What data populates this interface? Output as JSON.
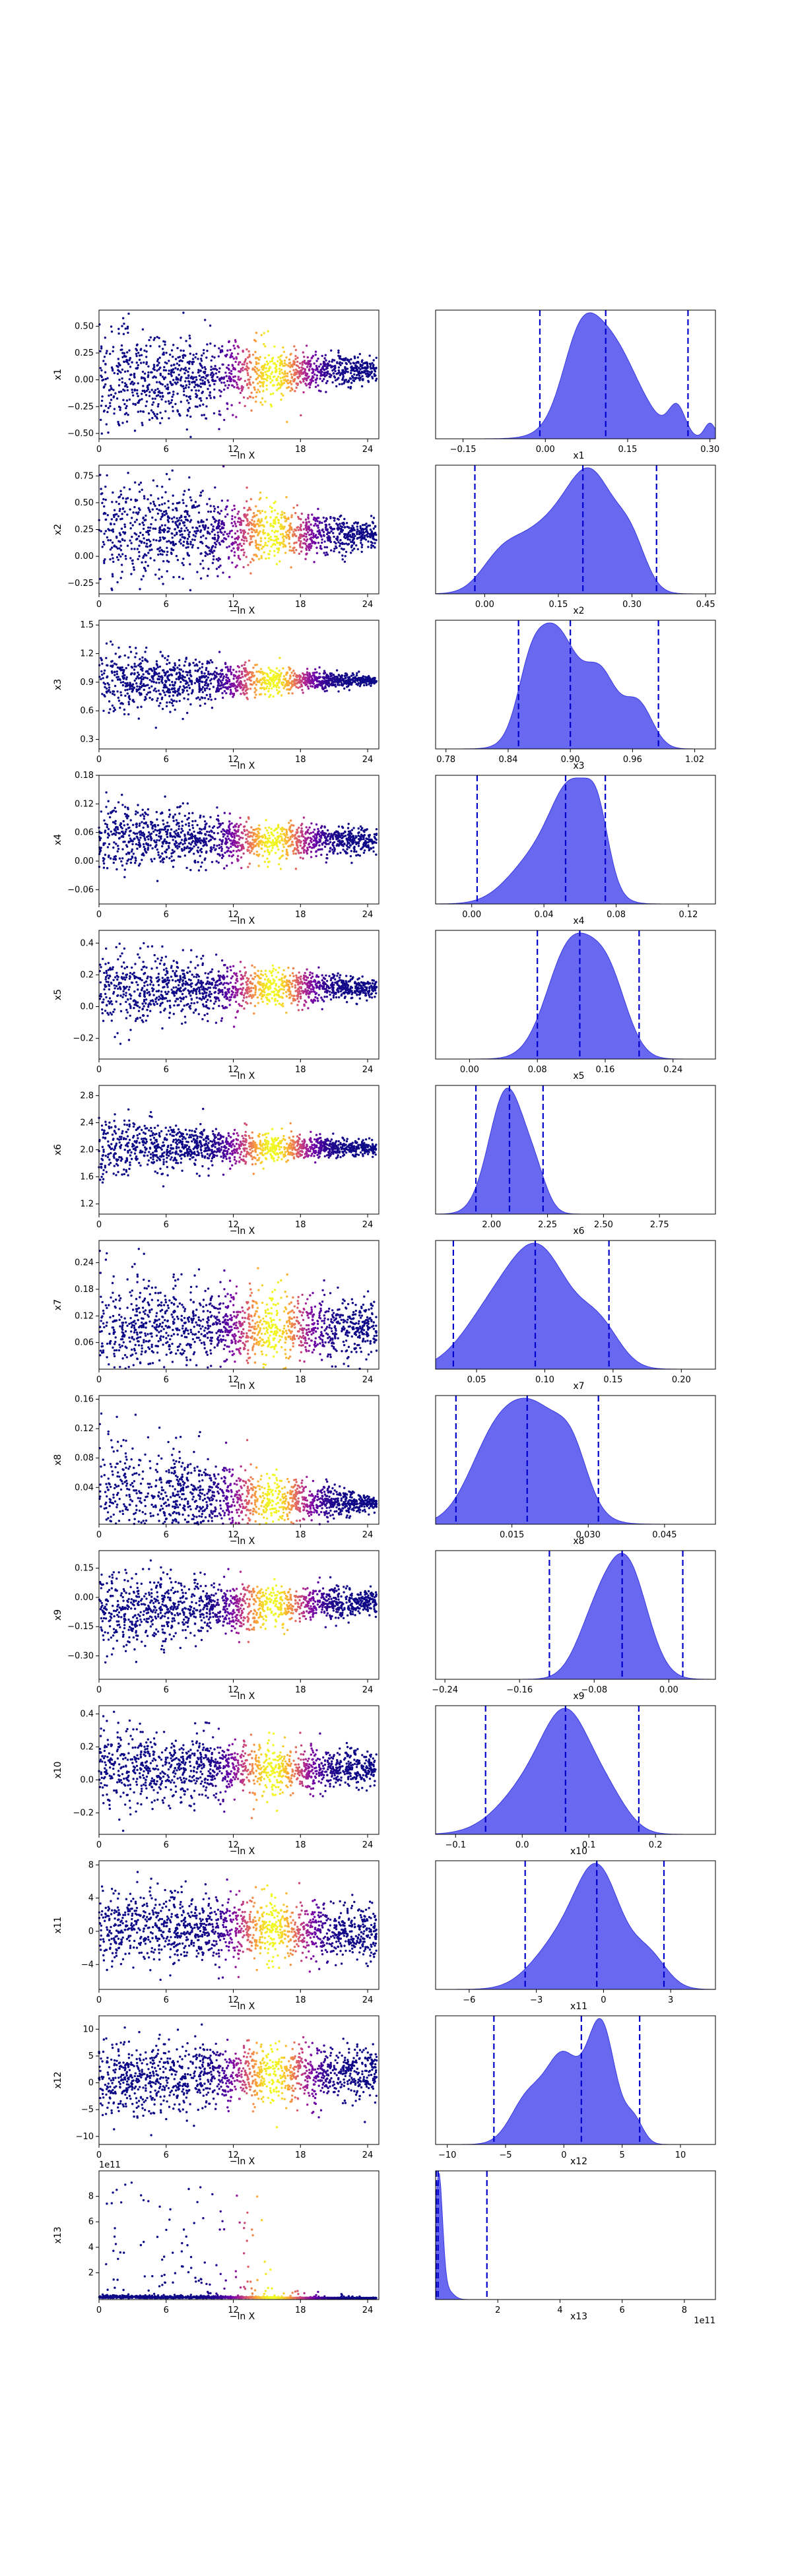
{
  "chart_data": {
    "type": "scatter-and-posterior-density-grid",
    "figure": {
      "trace_xlabel": "−ln X",
      "trace_xlim": [
        0,
        25
      ],
      "trace_xticks": [
        0,
        6,
        12,
        18,
        24
      ],
      "trace_xtick_labels": [
        "0",
        "6",
        "12",
        "18",
        "24"
      ],
      "colormap": [
        "#0d0887",
        "#6a00a8",
        "#b12a90",
        "#e16462",
        "#fca636",
        "#f0f921"
      ],
      "fill_color": "#5b5bef",
      "quantile_line_color": "#0000cc"
    },
    "rows": [
      {
        "param": "x_1",
        "label": "x1",
        "trace": {
          "ylim": [
            -0.55,
            0.65
          ],
          "yticks": [
            -0.5,
            -0.25,
            0,
            0.25,
            0.5
          ],
          "ytick_labels": [
            "−0.50",
            "−0.25",
            "0.00",
            "0.25",
            "0.50"
          ],
          "spread0": 0.3,
          "spread_end": 0.05,
          "center0": 0.0,
          "center_end": 0.1
        },
        "posterior": {
          "xlim": [
            -0.2,
            0.31
          ],
          "xticks": [
            -0.15,
            0,
            0.15,
            0.3
          ],
          "xtick_labels": [
            "−0.15",
            "0.00",
            "0.15",
            "0.30"
          ],
          "xlabel": "x1",
          "quantiles": [
            -0.01,
            0.11,
            0.26
          ],
          "peaks": [
            [
              0.11,
              0.055,
              1.0
            ],
            [
              0.06,
              0.03,
              0.45
            ],
            [
              0.24,
              0.015,
              0.28
            ],
            [
              0.3,
              0.01,
              0.15
            ]
          ]
        }
      },
      {
        "param": "x_2",
        "label": "x2",
        "trace": {
          "ylim": [
            -0.35,
            0.85
          ],
          "yticks": [
            -0.25,
            0,
            0.25,
            0.5,
            0.75
          ],
          "ytick_labels": [
            "−0.25",
            "0.00",
            "0.25",
            "0.50",
            "0.75"
          ],
          "spread0": 0.3,
          "spread_end": 0.06,
          "center0": 0.25,
          "center_end": 0.2
        },
        "posterior": {
          "xlim": [
            -0.1,
            0.47
          ],
          "xticks": [
            0,
            0.15,
            0.3,
            0.45
          ],
          "xtick_labels": [
            "0.00",
            "0.15",
            "0.30",
            "0.45"
          ],
          "xlabel": "x2",
          "quantiles": [
            -0.02,
            0.2,
            0.35
          ],
          "peaks": [
            [
              0.22,
              0.05,
              1.0
            ],
            [
              0.12,
              0.06,
              0.55
            ],
            [
              0.3,
              0.03,
              0.35
            ],
            [
              0.03,
              0.04,
              0.25
            ]
          ]
        }
      },
      {
        "param": "x_3",
        "label": "x3",
        "trace": {
          "ylim": [
            0.2,
            1.55
          ],
          "yticks": [
            0.3,
            0.6,
            0.9,
            1.2,
            1.5
          ],
          "ytick_labels": [
            "0.3",
            "0.6",
            "0.9",
            "1.2",
            "1.5"
          ],
          "spread0": 0.2,
          "spread_end": 0.02,
          "center0": 0.9,
          "center_end": 0.92
        },
        "posterior": {
          "xlim": [
            0.77,
            1.04
          ],
          "xticks": [
            0.78,
            0.84,
            0.9,
            0.96,
            1.02
          ],
          "xtick_labels": [
            "0.78",
            "0.84",
            "0.90",
            "0.96",
            "1.02"
          ],
          "xlabel": "x3",
          "quantiles": [
            0.85,
            0.9,
            0.985
          ],
          "peaks": [
            [
              0.885,
              0.022,
              1.0
            ],
            [
              0.93,
              0.015,
              0.55
            ],
            [
              0.965,
              0.014,
              0.38
            ],
            [
              0.86,
              0.012,
              0.3
            ]
          ]
        }
      },
      {
        "param": "x_4",
        "label": "x4",
        "trace": {
          "ylim": [
            -0.09,
            0.18
          ],
          "yticks": [
            -0.06,
            0,
            0.06,
            0.12,
            0.18
          ],
          "ytick_labels": [
            "−0.06",
            "0.00",
            "0.06",
            "0.12",
            "0.18"
          ],
          "spread0": 0.04,
          "spread_end": 0.012,
          "center0": 0.05,
          "center_end": 0.04
        },
        "posterior": {
          "xlim": [
            -0.02,
            0.135
          ],
          "xticks": [
            0,
            0.04,
            0.08,
            0.12
          ],
          "xtick_labels": [
            "0.00",
            "0.04",
            "0.08",
            "0.12"
          ],
          "xlabel": "x4",
          "quantiles": [
            0.003,
            0.052,
            0.074
          ],
          "peaks": [
            [
              0.057,
              0.012,
              1.0
            ],
            [
              0.035,
              0.015,
              0.4
            ],
            [
              0.07,
              0.006,
              0.45
            ]
          ]
        }
      },
      {
        "param": "x_5",
        "label": "x5",
        "trace": {
          "ylim": [
            -0.33,
            0.48
          ],
          "yticks": [
            -0.2,
            0,
            0.2,
            0.4
          ],
          "ytick_labels": [
            "−0.2",
            "0.0",
            "0.2",
            "0.4"
          ],
          "spread0": 0.13,
          "spread_end": 0.03,
          "center0": 0.12,
          "center_end": 0.12
        },
        "posterior": {
          "xlim": [
            -0.04,
            0.29
          ],
          "xticks": [
            0,
            0.08,
            0.16,
            0.24
          ],
          "xtick_labels": [
            "0.00",
            "0.08",
            "0.16",
            "0.24"
          ],
          "xlabel": "x5",
          "quantiles": [
            0.08,
            0.13,
            0.2
          ],
          "peaks": [
            [
              0.12,
              0.028,
              1.0
            ],
            [
              0.165,
              0.022,
              0.6
            ]
          ]
        }
      },
      {
        "param": "x_6",
        "label": "x6",
        "trace": {
          "ylim": [
            1.05,
            2.95
          ],
          "yticks": [
            1.2,
            1.6,
            2.0,
            2.4,
            2.8
          ],
          "ytick_labels": [
            "1.2",
            "1.6",
            "2.0",
            "2.4",
            "2.8"
          ],
          "spread0": 0.25,
          "spread_end": 0.05,
          "center0": 2.05,
          "center_end": 2.02
        },
        "posterior": {
          "xlim": [
            1.75,
            3.0
          ],
          "xticks": [
            2.0,
            2.25,
            2.5,
            2.75
          ],
          "xtick_labels": [
            "2.00",
            "2.25",
            "2.50",
            "2.75"
          ],
          "xlabel": "x6",
          "quantiles": [
            1.93,
            2.08,
            2.23
          ],
          "peaks": [
            [
              2.07,
              0.08,
              1.0
            ],
            [
              2.2,
              0.05,
              0.2
            ]
          ]
        }
      },
      {
        "param": "x_7",
        "label": "x7",
        "trace": {
          "ylim": [
            0.0,
            0.29
          ],
          "yticks": [
            0.06,
            0.12,
            0.18,
            0.24
          ],
          "ytick_labels": [
            "0.06",
            "0.12",
            "0.18",
            "0.24"
          ],
          "spread0": 0.06,
          "spread_end": 0.03,
          "center0": 0.1,
          "center_end": 0.09
        },
        "posterior": {
          "xlim": [
            0.02,
            0.225
          ],
          "xticks": [
            0.05,
            0.1,
            0.15,
            0.2
          ],
          "xtick_labels": [
            "0.05",
            "0.10",
            "0.15",
            "0.20"
          ],
          "xlabel": "x7",
          "quantiles": [
            0.033,
            0.093,
            0.147
          ],
          "peaks": [
            [
              0.097,
              0.022,
              1.0
            ],
            [
              0.06,
              0.022,
              0.45
            ],
            [
              0.14,
              0.015,
              0.35
            ]
          ]
        }
      },
      {
        "param": "x_8",
        "label": "x8",
        "trace": {
          "ylim": [
            -0.01,
            0.165
          ],
          "yticks": [
            0.04,
            0.08,
            0.12,
            0.16
          ],
          "ytick_labels": [
            "0.04",
            "0.08",
            "0.12",
            "0.16"
          ],
          "spread0": 0.05,
          "spread_end": 0.005,
          "center0": 0.03,
          "center_end": 0.018
        },
        "posterior": {
          "xlim": [
            0.0,
            0.055
          ],
          "xticks": [
            0.015,
            0.03,
            0.045
          ],
          "xtick_labels": [
            "0.015",
            "0.030",
            "0.045"
          ],
          "xlabel": "x8",
          "quantiles": [
            0.004,
            0.018,
            0.032
          ],
          "peaks": [
            [
              0.02,
              0.006,
              1.0
            ],
            [
              0.011,
              0.005,
              0.6
            ],
            [
              0.027,
              0.003,
              0.35
            ]
          ]
        }
      },
      {
        "param": "x_9",
        "label": "x9",
        "trace": {
          "ylim": [
            -0.42,
            0.24
          ],
          "yticks": [
            -0.3,
            -0.15,
            0,
            0.15
          ],
          "ytick_labels": [
            "−0.30",
            "−0.15",
            "0.00",
            "0.15"
          ],
          "spread0": 0.12,
          "spread_end": 0.03,
          "center0": -0.08,
          "center_end": -0.02
        },
        "posterior": {
          "xlim": [
            -0.25,
            0.05
          ],
          "xticks": [
            -0.24,
            -0.16,
            -0.08,
            0
          ],
          "xtick_labels": [
            "−0.24",
            "−0.16",
            "−0.08",
            "0.00"
          ],
          "xlabel": "x9",
          "quantiles": [
            -0.128,
            -0.05,
            0.015
          ],
          "peaks": [
            [
              -0.045,
              0.022,
              1.0
            ],
            [
              -0.08,
              0.02,
              0.45
            ]
          ]
        }
      },
      {
        "param": "x_10",
        "label": "x10",
        "trace": {
          "ylim": [
            -0.33,
            0.45
          ],
          "yticks": [
            -0.2,
            0,
            0.2,
            0.4
          ],
          "ytick_labels": [
            "−0.2",
            "0.0",
            "0.2",
            "0.4"
          ],
          "spread0": 0.14,
          "spread_end": 0.05,
          "center0": 0.08,
          "center_end": 0.06
        },
        "posterior": {
          "xlim": [
            -0.13,
            0.29
          ],
          "xticks": [
            -0.1,
            0,
            0.1,
            0.2
          ],
          "xtick_labels": [
            "−0.1",
            "0.0",
            "0.1",
            "0.2"
          ],
          "xlabel": "x10",
          "quantiles": [
            -0.055,
            0.065,
            0.175
          ],
          "peaks": [
            [
              0.07,
              0.035,
              1.0
            ],
            [
              0.02,
              0.05,
              0.6
            ],
            [
              0.13,
              0.03,
              0.35
            ]
          ]
        }
      },
      {
        "param": "x_11",
        "label": "x11",
        "trace": {
          "ylim": [
            -7.0,
            8.5
          ],
          "yticks": [
            -4,
            0,
            4,
            8
          ],
          "ytick_labels": [
            "−4",
            "0",
            "4",
            "8"
          ],
          "spread0": 2.3,
          "spread_end": 1.8,
          "center0": 0.5,
          "center_end": -0.2
        },
        "posterior": {
          "xlim": [
            -7.5,
            5.0
          ],
          "xticks": [
            -6,
            -3,
            0,
            3
          ],
          "xtick_labels": [
            "−6",
            "−3",
            "0",
            "3"
          ],
          "xlabel": "x11",
          "quantiles": [
            -3.5,
            -0.3,
            2.7
          ],
          "peaks": [
            [
              -0.2,
              1.0,
              1.0
            ],
            [
              -2.0,
              1.2,
              0.4
            ],
            [
              2.0,
              0.8,
              0.3
            ]
          ]
        }
      },
      {
        "param": "x_12",
        "label": "x12",
        "trace": {
          "ylim": [
            -11.5,
            12.5
          ],
          "yticks": [
            -10,
            -5,
            0,
            5,
            10
          ],
          "ytick_labels": [
            "−10",
            "−5",
            "0",
            "5",
            "10"
          ],
          "spread0": 3.8,
          "spread_end": 2.5,
          "center0": 0.5,
          "center_end": 2.0
        },
        "posterior": {
          "xlim": [
            -11,
            13
          ],
          "xticks": [
            -10,
            -5,
            0,
            5,
            10
          ],
          "xtick_labels": [
            "−10",
            "−5",
            "0",
            "5",
            "10"
          ],
          "xlabel": "x12",
          "quantiles": [
            -6.0,
            1.5,
            6.5
          ],
          "peaks": [
            [
              3.2,
              1.2,
              1.0
            ],
            [
              0.0,
              1.4,
              0.7
            ],
            [
              -3.0,
              1.5,
              0.4
            ],
            [
              6.0,
              0.8,
              0.2
            ]
          ]
        }
      },
      {
        "param": "x_13",
        "label": "x13",
        "trace": {
          "ylim": [
            -0.1,
            10.0
          ],
          "yticks": [
            2,
            4,
            6,
            8
          ],
          "ytick_labels": [
            "2",
            "4",
            "6",
            "8"
          ],
          "offset_label": "1e11",
          "spread0": 2.5,
          "spread_end": 0.05,
          "center0": 0.1,
          "center_end": 0.05,
          "positive": true
        },
        "posterior": {
          "xlim": [
            0,
            9.0
          ],
          "xticks": [
            2,
            4,
            6,
            8
          ],
          "xtick_labels": [
            "2",
            "4",
            "6",
            "8"
          ],
          "xlabel": "x13",
          "offset_label": "1e11",
          "quantiles": [
            0.02,
            0.08,
            1.65
          ],
          "peaks": [
            [
              0.1,
              0.12,
              1.0
            ],
            [
              0.35,
              0.2,
              0.08
            ]
          ]
        }
      }
    ]
  }
}
